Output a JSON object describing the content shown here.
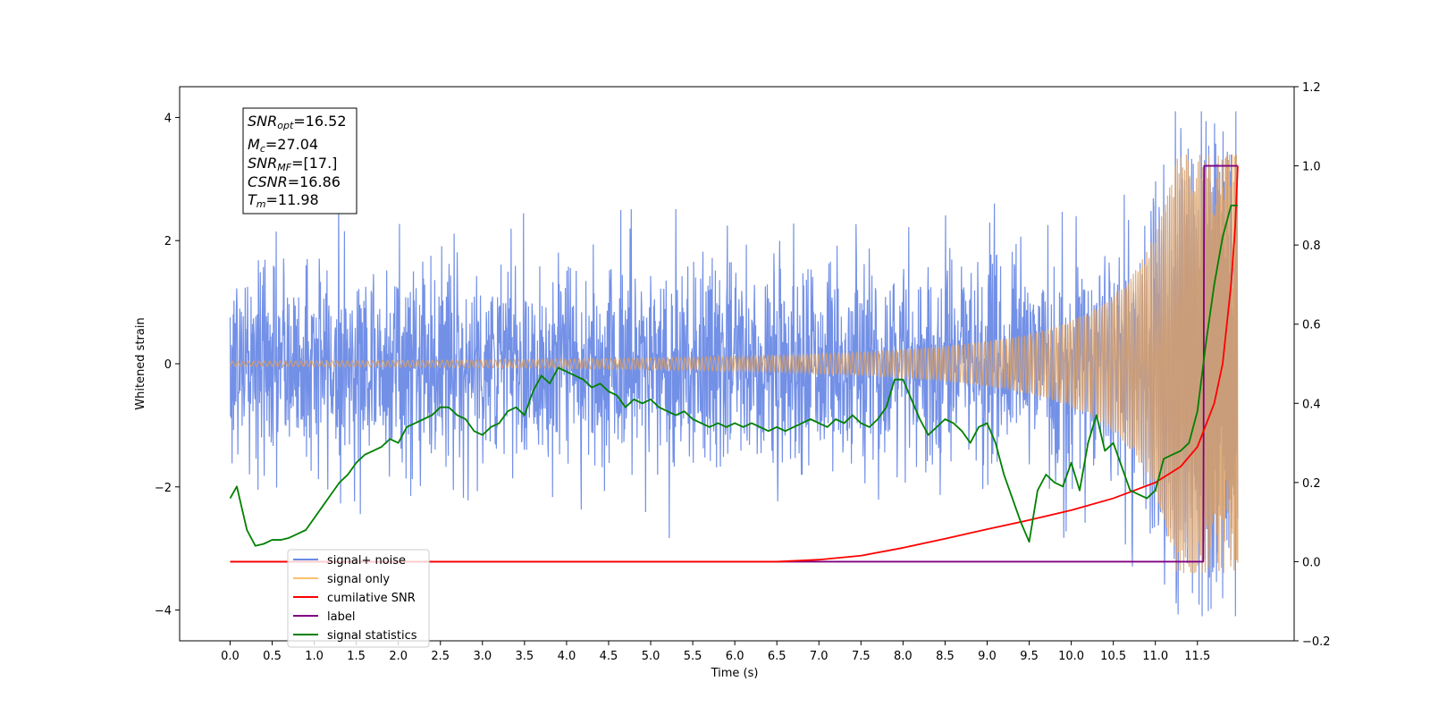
{
  "chart_data": {
    "type": "line",
    "xlabel": "Time (s)",
    "ylabel": "Whitened strain",
    "y2label": "",
    "xlim": [
      -0.6,
      12.65
    ],
    "ylim": [
      -4.5,
      4.5
    ],
    "y2lim": [
      -0.2,
      1.2
    ],
    "x_ticks": [
      0.0,
      0.5,
      1.0,
      1.5,
      2.0,
      2.5,
      3.0,
      3.5,
      4.0,
      4.5,
      5.0,
      5.5,
      6.0,
      6.5,
      7.0,
      7.5,
      8.0,
      8.5,
      9.0,
      9.5,
      10.0,
      10.5,
      11.0,
      11.5
    ],
    "x_tick_labels": [
      "0.0",
      "0.5",
      "1.0",
      "1.5",
      "2.0",
      "2.5",
      "3.0",
      "3.5",
      "4.0",
      "4.5",
      "5.0",
      "5.5",
      "6.0",
      "6.5",
      "7.0",
      "7.5",
      "8.0",
      "8.5",
      "9.0",
      "9.5",
      "10.0",
      "10.5",
      "11.0",
      "11.5"
    ],
    "y_ticks": [
      4,
      2,
      0,
      -2,
      -4
    ],
    "y_tick_labels": [
      "4",
      "2",
      "0",
      "−2",
      "−4"
    ],
    "y2_ticks": [
      1.2,
      1.0,
      0.8,
      0.6,
      0.4,
      0.2,
      0.0,
      -0.2
    ],
    "y2_tick_labels": [
      "1.2",
      "1.0",
      "0.8",
      "0.6",
      "0.4",
      "0.2",
      "0.0",
      "−0.2"
    ],
    "duration": 11.98,
    "merger_time": 11.98,
    "noise_sigma": 0.85,
    "signal_peak_amplitude": 3.4,
    "label_step_time": 11.58,
    "grid": false,
    "legend_location": "lower-left",
    "annotation": {
      "lines": [
        {
          "var": "SNR",
          "sub": "opt",
          "value": "=16.52"
        },
        {
          "var": "M",
          "sub": "c",
          "value": "=27.04"
        },
        {
          "var": "SNR",
          "sub": "MF",
          "value": "=[17.]"
        },
        {
          "var": "CSNR",
          "sub": "",
          "value": "=16.86"
        },
        {
          "var": "T",
          "sub": "m",
          "value": "=11.98"
        }
      ]
    },
    "series": [
      {
        "name": "signal+ noise",
        "color": "#6b8ae6",
        "axis": "left"
      },
      {
        "name": "signal only",
        "color": "#ffbf66",
        "axis": "left"
      },
      {
        "name": "cumilative SNR",
        "color": "#ff0000",
        "axis": "right",
        "x": [
          0.0,
          6.5,
          7.0,
          7.5,
          8.0,
          8.5,
          9.0,
          9.5,
          10.0,
          10.5,
          11.0,
          11.3,
          11.5,
          11.7,
          11.8,
          11.9,
          11.95,
          11.98
        ],
        "values": [
          0.0,
          0.0,
          0.005,
          0.015,
          0.035,
          0.058,
          0.082,
          0.105,
          0.13,
          0.16,
          0.2,
          0.24,
          0.29,
          0.4,
          0.5,
          0.7,
          0.85,
          1.0
        ]
      },
      {
        "name": "label",
        "color": "#800080",
        "axis": "right",
        "x": [
          0.0,
          11.57,
          11.58,
          11.98
        ],
        "values": [
          0.0,
          0.0,
          1.0,
          1.0
        ]
      },
      {
        "name": "signal statistics",
        "color": "#008000",
        "axis": "right",
        "x": [
          0.0,
          0.08,
          0.2,
          0.3,
          0.4,
          0.5,
          0.6,
          0.7,
          0.8,
          0.9,
          1.0,
          1.1,
          1.2,
          1.3,
          1.4,
          1.5,
          1.6,
          1.7,
          1.8,
          1.9,
          2.0,
          2.1,
          2.2,
          2.3,
          2.4,
          2.5,
          2.6,
          2.7,
          2.8,
          2.9,
          3.0,
          3.1,
          3.2,
          3.3,
          3.4,
          3.5,
          3.6,
          3.7,
          3.8,
          3.9,
          4.0,
          4.1,
          4.2,
          4.3,
          4.4,
          4.5,
          4.6,
          4.7,
          4.8,
          4.9,
          5.0,
          5.1,
          5.2,
          5.3,
          5.4,
          5.5,
          5.6,
          5.7,
          5.8,
          5.9,
          6.0,
          6.1,
          6.2,
          6.3,
          6.4,
          6.5,
          6.6,
          6.7,
          6.8,
          6.9,
          7.0,
          7.1,
          7.2,
          7.3,
          7.4,
          7.5,
          7.6,
          7.7,
          7.8,
          7.9,
          8.0,
          8.1,
          8.2,
          8.3,
          8.4,
          8.5,
          8.6,
          8.7,
          8.8,
          8.9,
          9.0,
          9.1,
          9.2,
          9.3,
          9.4,
          9.5,
          9.6,
          9.7,
          9.8,
          9.9,
          10.0,
          10.1,
          10.2,
          10.3,
          10.4,
          10.5,
          10.6,
          10.7,
          10.8,
          10.9,
          11.0,
          11.1,
          11.2,
          11.3,
          11.4,
          11.5,
          11.6,
          11.7,
          11.8,
          11.9,
          11.98
        ],
        "values": [
          0.16,
          0.19,
          0.08,
          0.04,
          0.045,
          0.055,
          0.055,
          0.06,
          0.07,
          0.08,
          0.11,
          0.14,
          0.17,
          0.2,
          0.22,
          0.25,
          0.27,
          0.28,
          0.29,
          0.31,
          0.3,
          0.34,
          0.35,
          0.36,
          0.37,
          0.39,
          0.39,
          0.37,
          0.36,
          0.33,
          0.32,
          0.34,
          0.35,
          0.38,
          0.39,
          0.37,
          0.43,
          0.47,
          0.45,
          0.49,
          0.48,
          0.47,
          0.46,
          0.44,
          0.45,
          0.43,
          0.42,
          0.39,
          0.41,
          0.4,
          0.41,
          0.39,
          0.38,
          0.37,
          0.38,
          0.36,
          0.35,
          0.34,
          0.35,
          0.34,
          0.35,
          0.34,
          0.35,
          0.34,
          0.33,
          0.34,
          0.33,
          0.34,
          0.35,
          0.36,
          0.35,
          0.34,
          0.36,
          0.35,
          0.37,
          0.35,
          0.34,
          0.36,
          0.39,
          0.46,
          0.46,
          0.41,
          0.36,
          0.32,
          0.34,
          0.36,
          0.35,
          0.33,
          0.3,
          0.34,
          0.35,
          0.3,
          0.22,
          0.16,
          0.1,
          0.05,
          0.18,
          0.22,
          0.2,
          0.19,
          0.25,
          0.18,
          0.3,
          0.37,
          0.28,
          0.3,
          0.24,
          0.18,
          0.17,
          0.16,
          0.18,
          0.26,
          0.27,
          0.28,
          0.3,
          0.38,
          0.55,
          0.7,
          0.82,
          0.9,
          0.9
        ]
      }
    ]
  }
}
